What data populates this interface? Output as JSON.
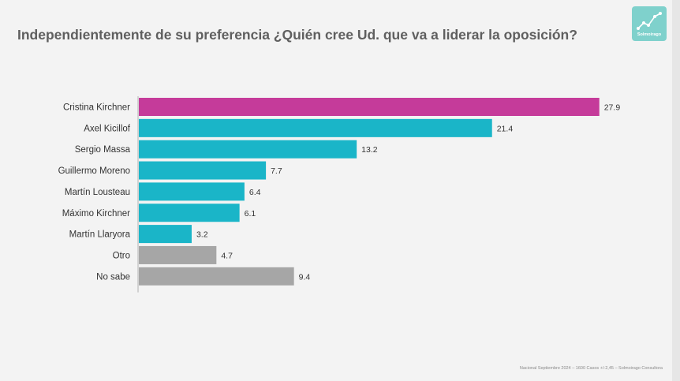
{
  "title": "Independientemente de su preferencia ¿Quién cree Ud. que va a liderar la oposición?",
  "logo": {
    "icon": "chart-trend-icon",
    "text": "Solmoirago",
    "color": "#7fd1cc"
  },
  "footer": "Nacional Septiembre 2024 – 1600 Casos +/-2,45 – Solmoirago Consultora",
  "colors": {
    "highlight": "#c53b9a",
    "main": "#1ab5c8",
    "other": "#a6a6a6",
    "axis": "#b0b0b0"
  },
  "chart_data": {
    "type": "bar",
    "orientation": "horizontal",
    "title": "Independientemente de su preferencia ¿Quién cree Ud. que va a liderar la oposición?",
    "categories": [
      "Cristina Kirchner",
      "Axel Kicillof",
      "Sergio Massa",
      "Guillermo Moreno",
      "Martín Lousteau",
      "Máximo Kirchner",
      "Martín Llaryora",
      "Otro",
      "No sabe"
    ],
    "values": [
      27.9,
      21.4,
      13.2,
      7.7,
      6.4,
      6.1,
      3.2,
      4.7,
      9.4
    ],
    "value_labels": [
      "27.9",
      "21.4",
      "13.2",
      "7.7",
      "6.4",
      "6.1",
      "3.2",
      "4.7",
      "9.4"
    ],
    "bar_colors": [
      "#c53b9a",
      "#1ab5c8",
      "#1ab5c8",
      "#1ab5c8",
      "#1ab5c8",
      "#1ab5c8",
      "#1ab5c8",
      "#a6a6a6",
      "#a6a6a6"
    ],
    "xlim": [
      0,
      28.2
    ],
    "grid": false,
    "legend": "none"
  }
}
